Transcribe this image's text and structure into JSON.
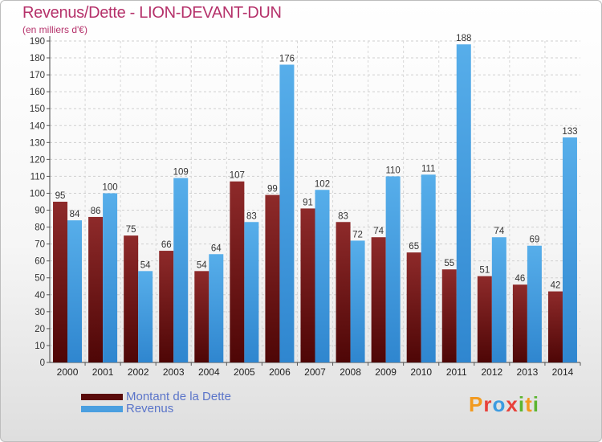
{
  "header": {
    "title": "Revenus/Dette - LION-DEVANT-DUN",
    "subtitle": "(en milliers d'€)"
  },
  "colors": {
    "dette": "#7a1e1e",
    "revenus": "#4a9fe0",
    "title": "#b5316a",
    "legend_text": "#5a74c9"
  },
  "chart_data": {
    "type": "bar",
    "title": "Revenus/Dette - LION-DEVANT-DUN",
    "subtitle": "(en milliers d'€)",
    "categories": [
      "2000",
      "2001",
      "2002",
      "2003",
      "2004",
      "2005",
      "2006",
      "2007",
      "2008",
      "2009",
      "2010",
      "2011",
      "2012",
      "2013",
      "2014"
    ],
    "series": [
      {
        "name": "Montant de la Dette",
        "color": "#7a1e1e",
        "values": [
          95,
          86,
          75,
          66,
          54,
          107,
          99,
          91,
          83,
          74,
          65,
          55,
          51,
          46,
          42
        ]
      },
      {
        "name": "Revenus",
        "color": "#4a9fe0",
        "values": [
          84,
          100,
          54,
          109,
          64,
          83,
          176,
          102,
          72,
          110,
          111,
          188,
          74,
          69,
          133
        ]
      }
    ],
    "yticks": [
      0,
      10,
      20,
      30,
      40,
      50,
      60,
      70,
      80,
      90,
      100,
      110,
      120,
      130,
      140,
      150,
      160,
      170,
      180,
      190
    ],
    "ylim": [
      0,
      190
    ],
    "grid": true,
    "legend_position": "bottom-left"
  },
  "legend": {
    "items": [
      {
        "label": "Montant de la Dette",
        "color": "#7a1e1e"
      },
      {
        "label": "Revenus",
        "color": "#4a9fe0"
      }
    ]
  },
  "brand": {
    "letters": [
      "P",
      "r",
      "o",
      "x",
      "i",
      "t",
      "i"
    ],
    "colors": [
      "#f29a1f",
      "#e8413a",
      "#3d9be0",
      "#e8413a",
      "#5cb531",
      "#f29a1f",
      "#5cb531"
    ]
  }
}
